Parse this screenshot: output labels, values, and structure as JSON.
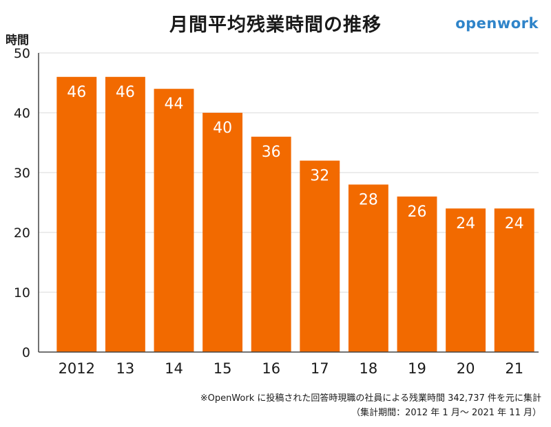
{
  "header": {
    "title": "月間平均残業時間の推移",
    "logo": "openwork",
    "y_unit": "時間"
  },
  "footer": {
    "note1": "※OpenWork に投稿された回答時現職の社員による残業時間 342,737 件を元に集計",
    "note2": "（集計期間：2012 年 1 月〜 2021 年 11 月）"
  },
  "colors": {
    "bar": "#f26a00",
    "grid": "#d9d9d9",
    "axis": "#444444",
    "logo": "#2f84c9"
  },
  "chart_data": {
    "type": "bar",
    "title": "月間平均残業時間の推移",
    "xlabel": "",
    "ylabel": "時間",
    "categories": [
      "2012",
      "13",
      "14",
      "15",
      "16",
      "17",
      "18",
      "19",
      "20",
      "21"
    ],
    "values": [
      46,
      46,
      44,
      40,
      36,
      32,
      28,
      26,
      24,
      24
    ],
    "data_labels": [
      "46",
      "46",
      "44",
      "40",
      "36",
      "32",
      "28",
      "26",
      "24",
      "24"
    ],
    "ylim": [
      0,
      50
    ],
    "yticks": [
      0,
      10,
      20,
      30,
      40,
      50
    ],
    "ytick_labels": [
      "0",
      "10",
      "20",
      "30",
      "40",
      "50"
    ],
    "grid": true,
    "legend": "none"
  }
}
